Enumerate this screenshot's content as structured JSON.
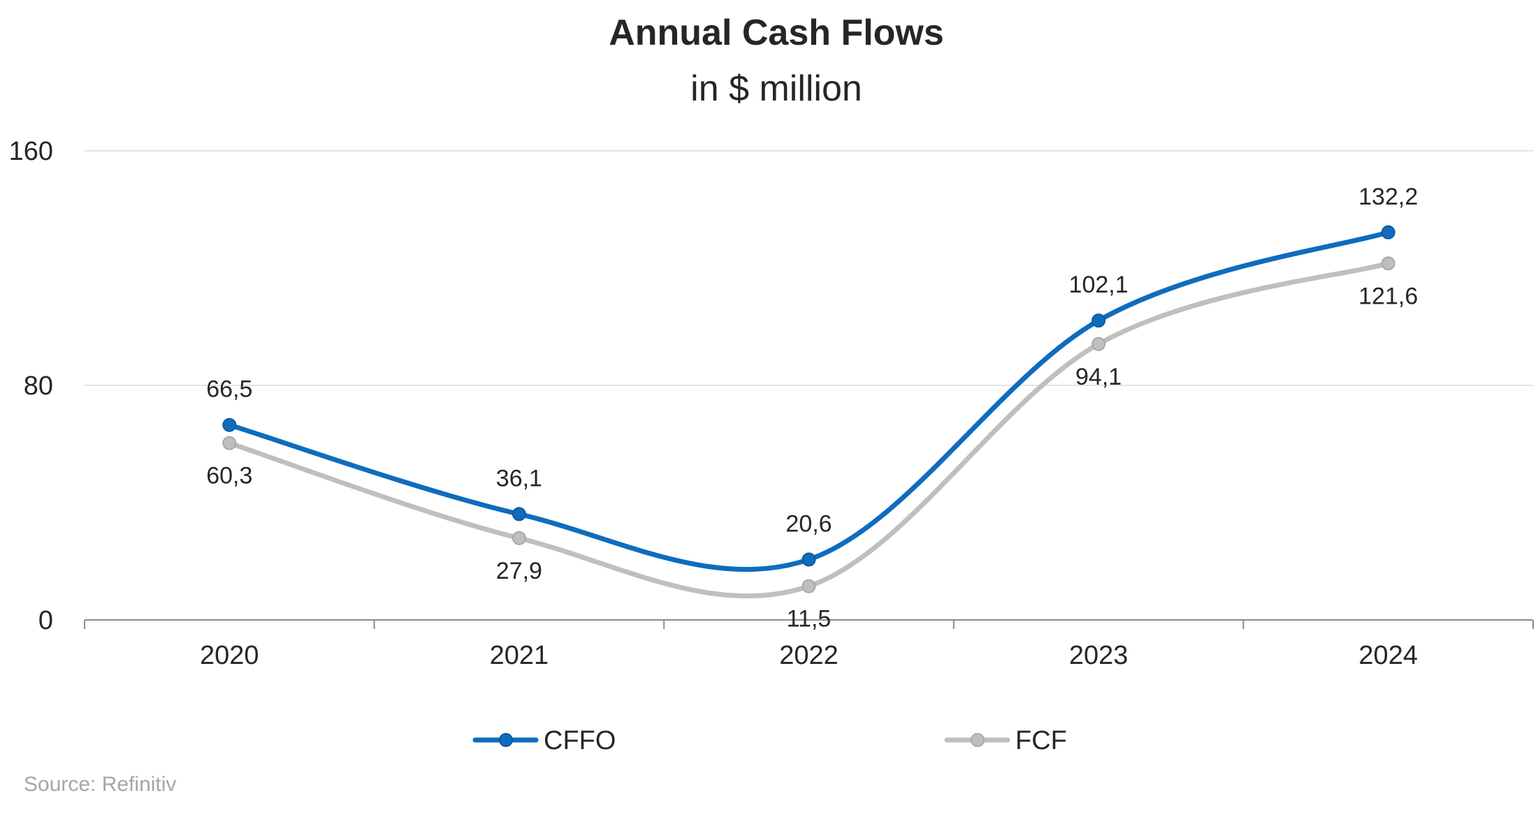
{
  "chart_data": {
    "type": "line",
    "title": "Annual Cash Flows",
    "subtitle": "in $ million",
    "categories": [
      "2020",
      "2021",
      "2022",
      "2023",
      "2024"
    ],
    "series": [
      {
        "name": "CFFO",
        "values": [
          66.5,
          36.1,
          20.6,
          102.1,
          132.2
        ],
        "labels": [
          "66,5",
          "36,1",
          "20,6",
          "102,1",
          "132,2"
        ],
        "color": "#0f6cbd"
      },
      {
        "name": "FCF",
        "values": [
          60.3,
          27.9,
          11.5,
          94.1,
          121.6
        ],
        "labels": [
          "60,3",
          "27,9",
          "11,5",
          "94,1",
          "121,6"
        ],
        "color": "#bfbfbf"
      }
    ],
    "yticks": [
      "0",
      "80",
      "160"
    ],
    "ylim": [
      0,
      160
    ],
    "grid": true,
    "smooth": true,
    "legend_position": "bottom"
  },
  "source": "Source: Refinitiv"
}
